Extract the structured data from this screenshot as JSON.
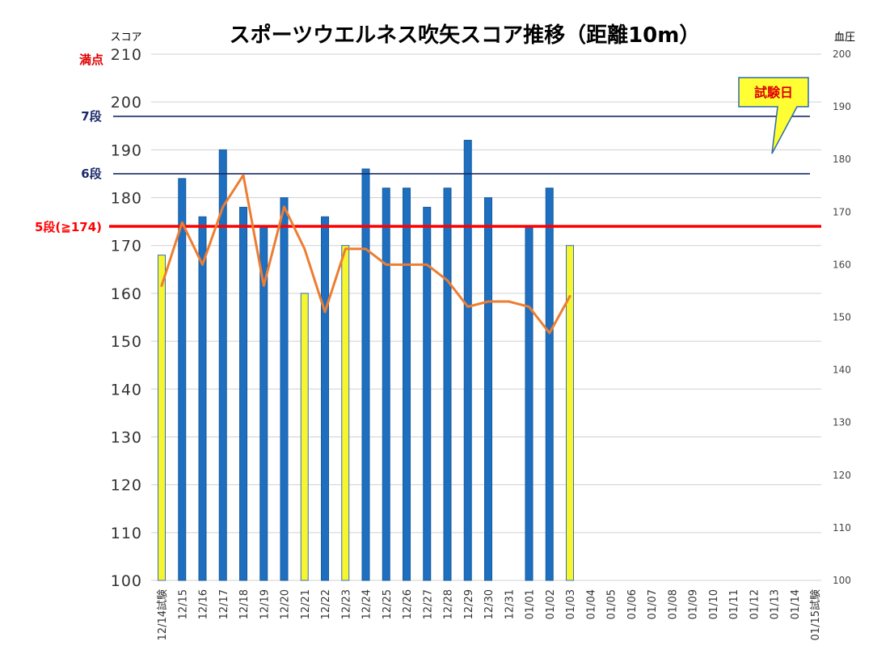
{
  "chart_data": {
    "type": "bar",
    "title": "スポーツウエルネス吹矢スコア推移（距離10m）",
    "ylabel": "スコア",
    "y2label": "血圧",
    "ylim": [
      100,
      210
    ],
    "y2lim": [
      100,
      200
    ],
    "yticks": [
      100,
      110,
      120,
      130,
      140,
      150,
      160,
      170,
      180,
      190,
      200,
      210
    ],
    "y2ticks": [
      100,
      110,
      120,
      130,
      140,
      150,
      160,
      170,
      180,
      190,
      200
    ],
    "grid": true,
    "categories": [
      "12/14試験",
      "12/15",
      "12/16",
      "12/17",
      "12/18",
      "12/19",
      "12/20",
      "12/21",
      "12/22",
      "12/23",
      "12/24",
      "12/25",
      "12/26",
      "12/27",
      "12/28",
      "12/29",
      "12/30",
      "12/31",
      "01/01",
      "01/02",
      "01/03",
      "01/04",
      "01/05",
      "01/06",
      "01/07",
      "01/08",
      "01/09",
      "01/10",
      "01/11",
      "01/12",
      "01/13",
      "01/14",
      "01/15試験"
    ],
    "series": [
      {
        "kind": "bar",
        "axis": "left",
        "values": [
          168,
          184,
          176,
          190,
          178,
          174,
          180,
          160,
          176,
          170,
          186,
          182,
          182,
          178,
          182,
          192,
          180,
          null,
          174,
          182,
          170,
          null,
          null,
          null,
          null,
          null,
          null,
          null,
          null,
          null,
          null,
          null,
          null
        ],
        "highlight": [
          0,
          7,
          9,
          20
        ],
        "color": "#1f6fc0",
        "highlight_color": "#f5f530"
      },
      {
        "kind": "line",
        "axis": "right",
        "values": [
          156,
          168,
          160,
          171,
          177,
          156,
          171,
          163,
          151,
          163,
          163,
          160,
          160,
          160,
          157,
          152,
          153,
          153,
          152,
          147,
          154,
          null,
          null,
          null,
          null,
          null,
          null,
          null,
          null,
          null,
          null,
          null,
          null
        ],
        "color": "#ed7d31"
      }
    ],
    "reference_lines": [
      {
        "label": "満点",
        "value": 210,
        "color": "#e00000"
      },
      {
        "label": "7段",
        "value": 197,
        "color": "#1a2a6a"
      },
      {
        "label": "6段",
        "value": 185,
        "color": "#1a2a6a"
      },
      {
        "label": "5段(≧174)",
        "value": 174,
        "color": "#ff0000"
      }
    ],
    "annotations": [
      {
        "text": "試験日",
        "target": "01/15試験"
      }
    ]
  }
}
